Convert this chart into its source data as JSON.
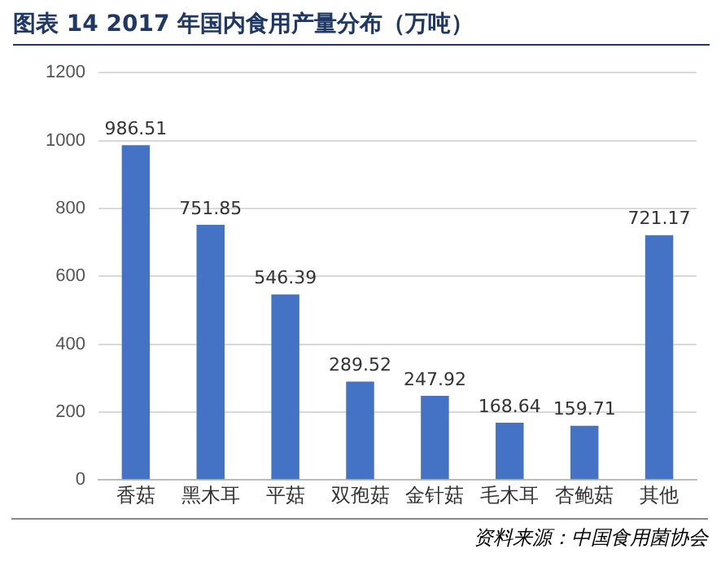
{
  "chart_data": {
    "type": "bar",
    "title": "图表 14 2017 年国内食用产量分布（万吨）",
    "categories": [
      "香菇",
      "黑木耳",
      "平菇",
      "双孢菇",
      "金针菇",
      "毛木耳",
      "杏鲍菇",
      "其他"
    ],
    "values": [
      986.51,
      751.85,
      546.39,
      289.52,
      247.92,
      168.64,
      159.71,
      721.17
    ],
    "color": "#4472c4",
    "ylim": [
      0,
      1200
    ],
    "yticks": [
      0,
      200,
      400,
      600,
      800,
      1000,
      1200
    ],
    "grid": "y",
    "data_labels": true,
    "legend": false,
    "annotations": [
      "资料来源：中国食用菌协会"
    ]
  }
}
